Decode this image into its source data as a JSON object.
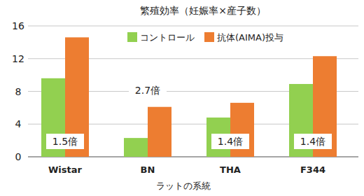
{
  "chart_data": {
    "type": "bar",
    "title": "繁殖効率（妊娠率×産子数）",
    "x_label": "ラットの系統",
    "categories": [
      "Wistar",
      "BN",
      "THA",
      "F344"
    ],
    "series": [
      {
        "name": "コントロール",
        "color": "#92d050",
        "values": [
          9.6,
          2.3,
          4.8,
          8.9
        ]
      },
      {
        "name": "抗体(AIMA)投与",
        "color": "#ed7d31",
        "values": [
          14.6,
          6.1,
          6.6,
          12.3
        ]
      }
    ],
    "annotations": [
      "1.5倍",
      "2.7倍",
      "1.4倍",
      "1.4倍"
    ],
    "ylim": [
      0,
      16
    ],
    "yticks": [
      0,
      4,
      8,
      12,
      16
    ],
    "grid": true,
    "legend": "top"
  }
}
